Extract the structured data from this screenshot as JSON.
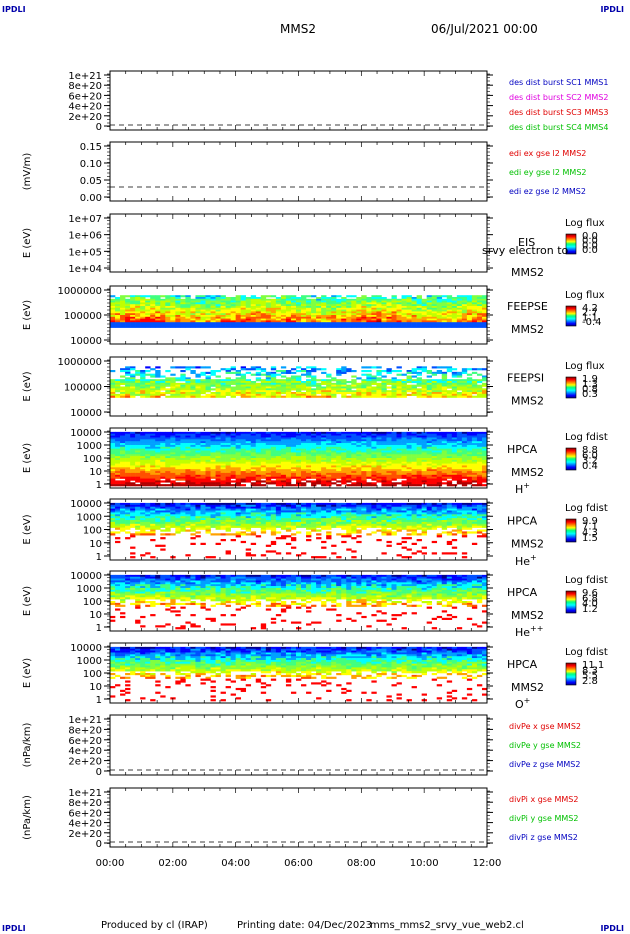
{
  "header": {
    "corner_label": "IPDLI",
    "spacecraft": "MMS2",
    "date_time": "06/Jul/2021 00:00"
  },
  "footer": {
    "produced_by": "Produced by cl (IRAP)",
    "printing_date": "Printing date: 04/Dec/2023",
    "file_name": "mms_mms2_srvy_vue_web2.cl"
  },
  "colors": {
    "red": "#e00000",
    "magenta": "#e000e0",
    "green": "#00c000",
    "blue": "#0000c0"
  },
  "chart_data": [
    {
      "type": "line",
      "panel": "des",
      "ylabel": "",
      "yticks": [
        "1e+21",
        "8e+20",
        "6e+20",
        "4e+20",
        "2e+20",
        "0"
      ],
      "ylim": [
        0,
        1e+21
      ],
      "series": [
        {
          "name": "des dist burst SC1 MMS1",
          "color": "#0000c0"
        },
        {
          "name": "des dist burst SC2 MMS2",
          "color": "#e000e0"
        },
        {
          "name": "des dist burst SC3 MMS3",
          "color": "#e00000"
        },
        {
          "name": "des dist burst SC4 MMS4",
          "color": "#00c000"
        }
      ]
    },
    {
      "type": "line",
      "panel": "edi",
      "ylabel": "(mV/m)",
      "yticks": [
        "0.15",
        "0.10",
        "0.05",
        "0.00"
      ],
      "ylim": [
        -0.01,
        0.16
      ],
      "series": [
        {
          "name": "edi ex gse l2 MMS2",
          "color": "#e00000"
        },
        {
          "name": "edi ey gse l2 MMS2",
          "color": "#00c000"
        },
        {
          "name": "edi ez gse l2 MMS2",
          "color": "#0000c0"
        }
      ]
    },
    {
      "type": "heatmap",
      "panel": "eis",
      "ylabel": "E (eV)",
      "yticks": [
        "1e+07",
        "1e+06",
        "1e+05",
        "1e+04"
      ],
      "log_y": true,
      "instrument": "EIS",
      "note": "srvy electron to",
      "spacecraft": "MMS2",
      "colorbar_title": "Log flux",
      "colorbar_ticks": [
        "0.0",
        "0.0",
        "0.0",
        "0.0"
      ]
    },
    {
      "type": "heatmap",
      "panel": "feepse",
      "ylabel": "E (eV)",
      "yticks": [
        "1000000",
        "100000",
        "10000"
      ],
      "log_y": true,
      "instrument": "FEEPSE",
      "spacecraft": "MMS2",
      "colorbar_title": "Log flux",
      "colorbar_ticks": [
        "4.2",
        "2.7",
        "1.1",
        "-0.4"
      ]
    },
    {
      "type": "heatmap",
      "panel": "feepsi",
      "ylabel": "E (eV)",
      "yticks": [
        "1000000",
        "100000",
        "10000"
      ],
      "log_y": true,
      "instrument": "FEEPSI",
      "spacecraft": "MMS2",
      "colorbar_title": "Log flux",
      "colorbar_ticks": [
        "1.9",
        "1.3",
        "0.8",
        "0.3"
      ]
    },
    {
      "type": "heatmap",
      "panel": "hpca_h",
      "ylabel": "E (eV)",
      "yticks": [
        "10000",
        "1000",
        "100",
        "10",
        "1"
      ],
      "log_y": true,
      "instrument": "HPCA",
      "spacecraft": "MMS2",
      "species": "H",
      "species_sup": "+",
      "colorbar_title": "Log fdist",
      "colorbar_ticks": [
        "8.8",
        "6.0",
        "3.2",
        "0.4"
      ]
    },
    {
      "type": "heatmap",
      "panel": "hpca_he",
      "ylabel": "E (eV)",
      "yticks": [
        "10000",
        "1000",
        "100",
        "10",
        "1"
      ],
      "log_y": true,
      "instrument": "HPCA",
      "spacecraft": "MMS2",
      "species": "He",
      "species_sup": "+",
      "colorbar_title": "Log fdist",
      "colorbar_ticks": [
        "9.9",
        "7.1",
        "4.3",
        "1.5"
      ]
    },
    {
      "type": "heatmap",
      "panel": "hpca_he2",
      "ylabel": "E (eV)",
      "yticks": [
        "10000",
        "1000",
        "100",
        "10",
        "1"
      ],
      "log_y": true,
      "instrument": "HPCA",
      "spacecraft": "MMS2",
      "species": "He",
      "species_sup": "++",
      "colorbar_title": "Log fdist",
      "colorbar_ticks": [
        "9.6",
        "6.8",
        "4.0",
        "1.2"
      ]
    },
    {
      "type": "heatmap",
      "panel": "hpca_o",
      "ylabel": "E (eV)",
      "yticks": [
        "10000",
        "1000",
        "100",
        "10",
        "1"
      ],
      "log_y": true,
      "instrument": "HPCA",
      "spacecraft": "MMS2",
      "species": "O",
      "species_sup": "+",
      "colorbar_title": "Log fdist",
      "colorbar_ticks": [
        "11.1",
        "8.3",
        "5.5",
        "2.8"
      ]
    },
    {
      "type": "line",
      "panel": "divpe",
      "ylabel": "(nPa/km)",
      "yticks": [
        "1e+21",
        "8e+20",
        "6e+20",
        "4e+20",
        "2e+20",
        "0"
      ],
      "ylim": [
        0,
        1e+21
      ],
      "series": [
        {
          "name": "divPe x gse MMS2",
          "color": "#e00000"
        },
        {
          "name": "divPe y gse MMS2",
          "color": "#00c000"
        },
        {
          "name": "divPe z gse MMS2",
          "color": "#0000c0"
        }
      ]
    },
    {
      "type": "line",
      "panel": "divpi",
      "ylabel": "(nPa/km)",
      "yticks": [
        "1e+21",
        "8e+20",
        "6e+20",
        "4e+20",
        "2e+20",
        "0"
      ],
      "ylim": [
        0,
        1e+21
      ],
      "series": [
        {
          "name": "divPi x gse MMS2",
          "color": "#e00000"
        },
        {
          "name": "divPi y gse MMS2",
          "color": "#00c000"
        },
        {
          "name": "divPi z gse MMS2",
          "color": "#0000c0"
        }
      ]
    }
  ],
  "x_axis": {
    "ticks": [
      "00:00",
      "02:00",
      "04:00",
      "06:00",
      "08:00",
      "10:00",
      "12:00"
    ],
    "xlim": [
      "00:00",
      "12:00"
    ]
  }
}
